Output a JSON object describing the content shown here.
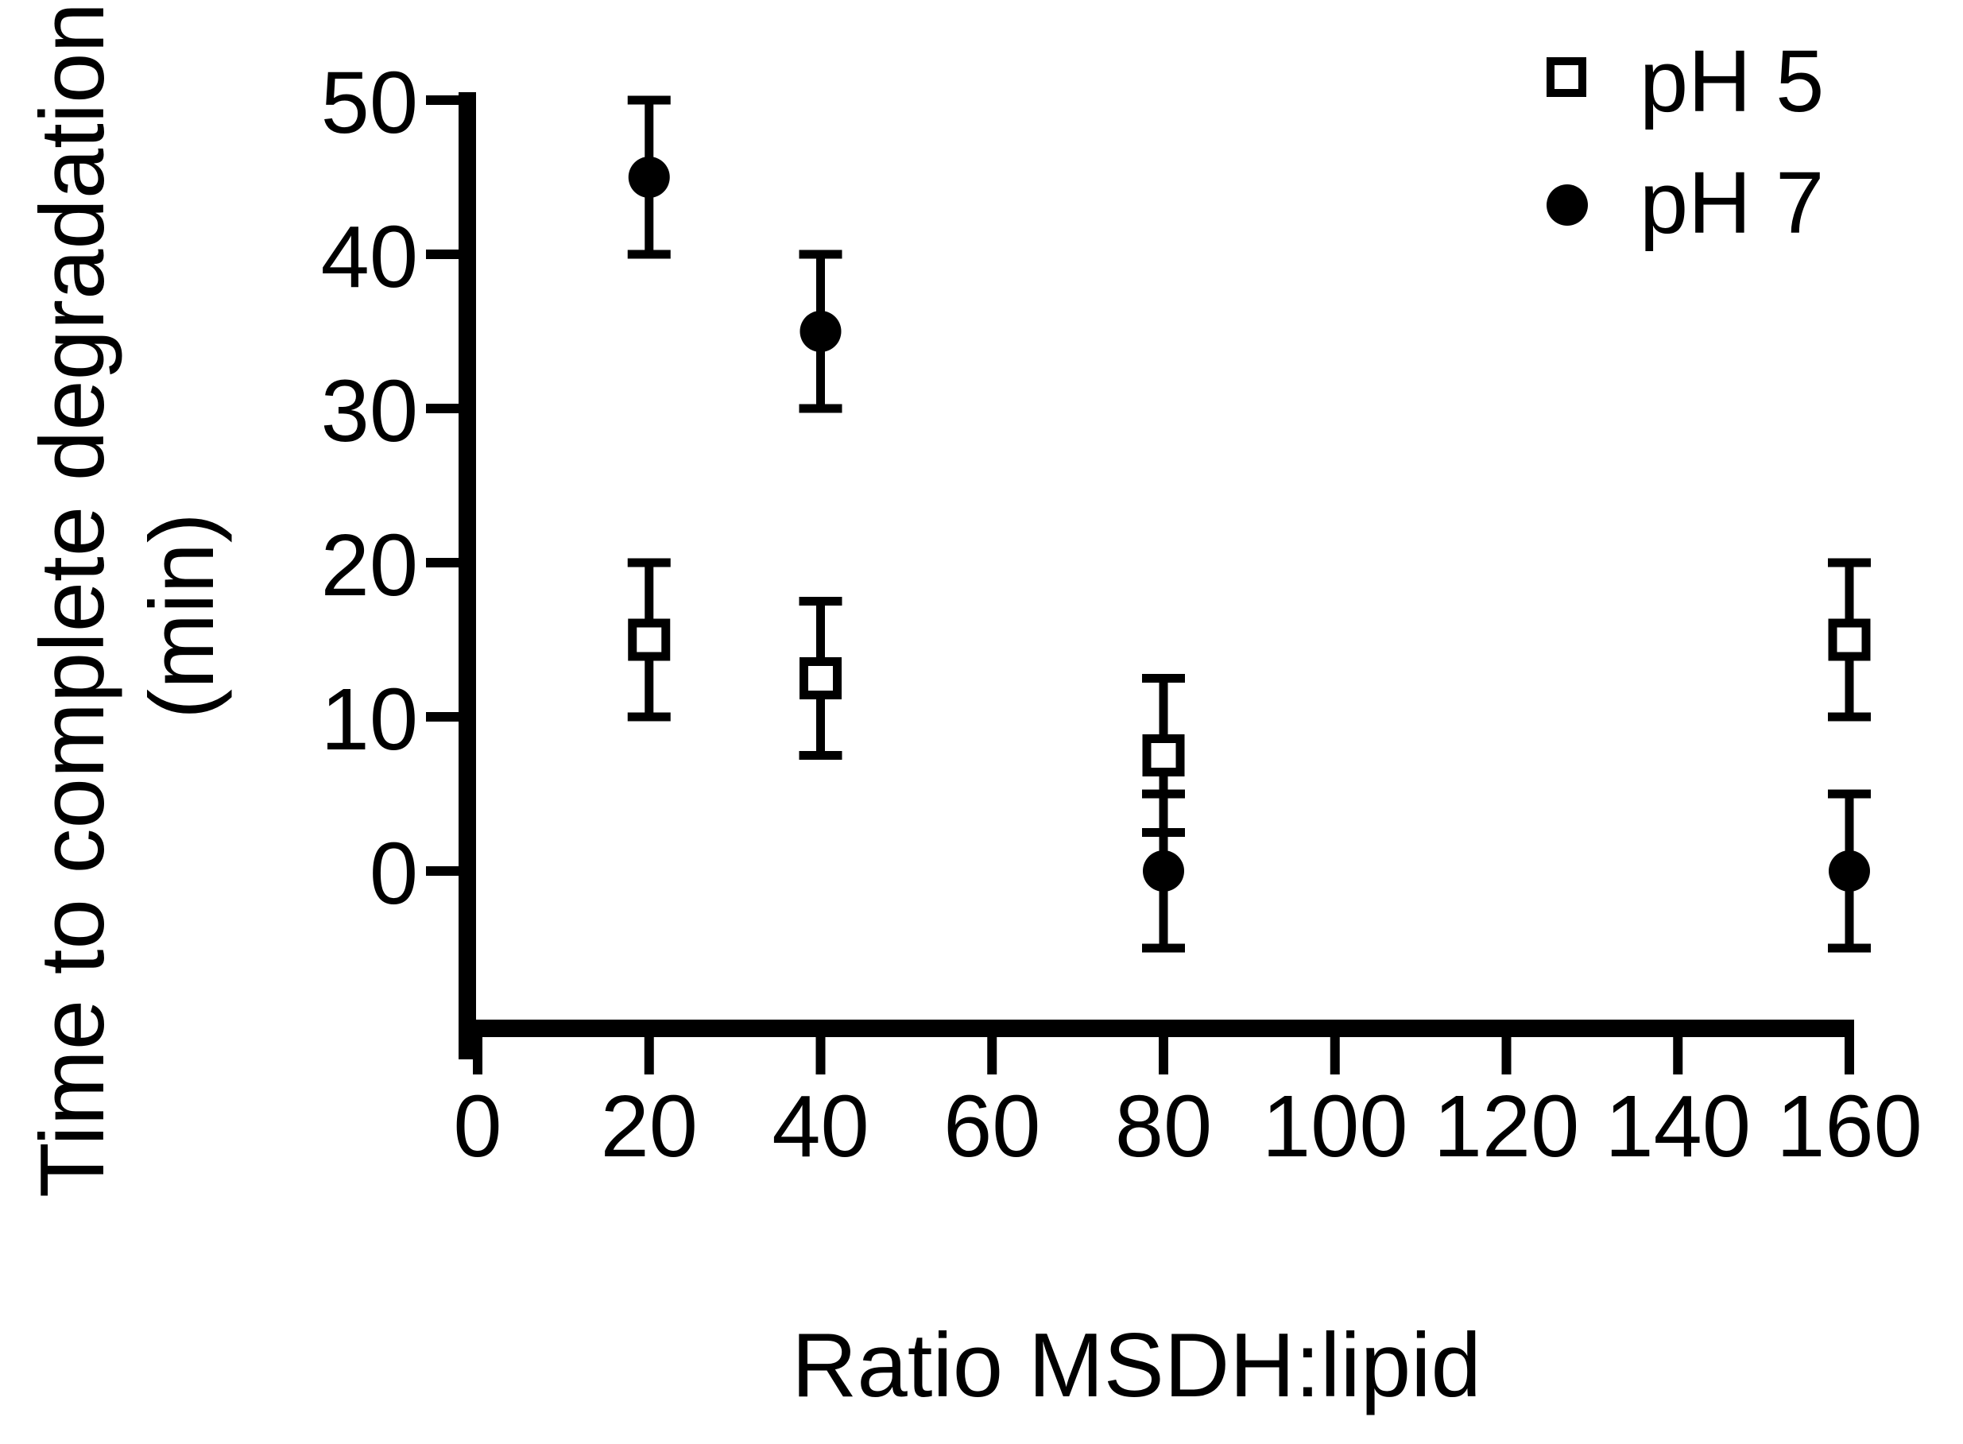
{
  "figure": {
    "background_color": "#ffffff",
    "foreground_color": "#000000"
  },
  "chart_data": {
    "type": "scatter",
    "title": "",
    "xlabel": "Ratio MSDH:lipid",
    "ylabel": "Time to complete degradation",
    "ylabel_units": "(min)",
    "xlim": [
      0,
      160
    ],
    "ylim": [
      0,
      50
    ],
    "grid": false,
    "x_ticks": [
      0,
      20,
      40,
      60,
      80,
      100,
      120,
      140,
      160
    ],
    "y_ticks": [
      0,
      10,
      20,
      30,
      40,
      50
    ],
    "marker_color": "#000000",
    "error_bar_color": "#000000",
    "legend": {
      "position": "top-right",
      "items": [
        {
          "label": "pH 5",
          "marker": "open-square"
        },
        {
          "label": "pH 7",
          "marker": "filled-circle"
        }
      ]
    },
    "series": [
      {
        "name": "pH 5",
        "marker": "open-square",
        "points": [
          {
            "x": 20,
            "y": 15,
            "yerr": 5
          },
          {
            "x": 40,
            "y": 12.5,
            "yerr": 5
          },
          {
            "x": 80,
            "y": 7.5,
            "yerr": 5
          },
          {
            "x": 160,
            "y": 15,
            "yerr": 5
          }
        ]
      },
      {
        "name": "pH 7",
        "marker": "filled-circle",
        "points": [
          {
            "x": 20,
            "y": 45,
            "yerr": 5
          },
          {
            "x": 40,
            "y": 35,
            "yerr": 5
          },
          {
            "x": 80,
            "y": 0,
            "yerr": 5
          },
          {
            "x": 160,
            "y": 0,
            "yerr": 5
          }
        ]
      }
    ]
  }
}
